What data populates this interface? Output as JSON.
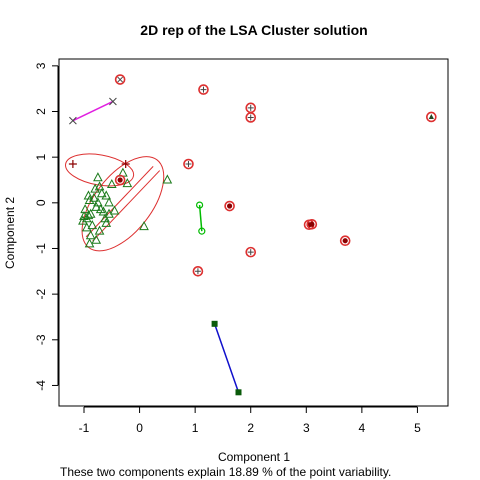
{
  "chart_data": {
    "type": "scatter",
    "title": "2D rep of the LSA Cluster solution",
    "xlabel": "Component 1",
    "ylabel": "Component 2",
    "subtitle": "These two components explain 18.89 % of the point variability.",
    "xlim": [
      -1.45,
      5.55
    ],
    "ylim": [
      -4.45,
      3.15
    ],
    "x_ticks": [
      -1,
      0,
      1,
      2,
      3,
      4,
      5
    ],
    "y_ticks": [
      -4,
      -3,
      -2,
      -1,
      0,
      1,
      2,
      3
    ],
    "grid": false,
    "colors": {
      "cluster_ellipse": "#dd3030",
      "large_cluster": "#1a7a1a",
      "plus_cluster": "#8b0000",
      "x_cluster_line": "#e020e0",
      "circle_cluster_line": "#00bb00",
      "square_cluster_line": "#1010cc",
      "square_marker": "#0a5a0a",
      "outline_marker": "#444444"
    },
    "ellipses": [
      {
        "cx": -0.72,
        "cy": 0.72,
        "rx": 0.62,
        "ry": 0.33,
        "angle_deg": -10
      },
      {
        "cx": -0.3,
        "cy": -0.02,
        "rx": 1.0,
        "ry": 0.62,
        "angle_deg": 52
      }
    ],
    "segments": [
      {
        "from": [
          -1.2,
          1.8
        ],
        "to": [
          -0.48,
          2.22
        ],
        "color": "#e020e0"
      },
      {
        "from": [
          1.08,
          -0.05
        ],
        "to": [
          1.12,
          -0.62
        ],
        "color": "#00bb00"
      },
      {
        "from": [
          1.35,
          -2.65
        ],
        "to": [
          1.78,
          -4.15
        ],
        "color": "#1010cc"
      }
    ],
    "series": [
      {
        "marker": "triangle",
        "points": [
          [
            -1.0,
            -0.3
          ],
          [
            -0.95,
            -0.35
          ],
          [
            -0.92,
            -0.28
          ],
          [
            -0.88,
            -0.25
          ],
          [
            -1.02,
            -0.4
          ],
          [
            -0.9,
            0.05
          ],
          [
            -0.82,
            0.1
          ],
          [
            -0.75,
            0.0
          ],
          [
            -0.7,
            -0.15
          ],
          [
            -0.65,
            -0.2
          ],
          [
            -0.85,
            -0.5
          ],
          [
            -0.95,
            -0.55
          ],
          [
            -0.88,
            -0.72
          ],
          [
            -0.78,
            -0.82
          ],
          [
            -0.72,
            -0.62
          ],
          [
            -0.6,
            -0.45
          ],
          [
            -0.55,
            -0.25
          ],
          [
            -0.45,
            -0.18
          ],
          [
            -0.8,
            0.3
          ],
          [
            -0.72,
            0.35
          ],
          [
            -0.68,
            0.2
          ],
          [
            -0.6,
            0.15
          ],
          [
            -0.55,
            0.0
          ],
          [
            -0.78,
            -0.1
          ],
          [
            -0.98,
            -0.15
          ],
          [
            -0.92,
            0.15
          ],
          [
            -0.5,
            0.4
          ],
          [
            -0.75,
            0.55
          ],
          [
            -0.3,
            0.65
          ],
          [
            -0.22,
            0.42
          ],
          [
            0.5,
            0.5
          ],
          [
            0.08,
            -0.52
          ],
          [
            -0.9,
            -0.9
          ],
          [
            -0.62,
            -0.35
          ]
        ]
      },
      {
        "marker": "circle-dot",
        "points": [
          [
            -0.35,
            0.5
          ],
          [
            1.62,
            -0.07
          ],
          [
            3.7,
            -0.83
          ],
          [
            3.05,
            -0.48
          ],
          [
            3.1,
            -0.47
          ]
        ]
      },
      {
        "marker": "circle-plus",
        "points": [
          [
            2.0,
            2.08
          ],
          [
            2.0,
            1.87
          ],
          [
            0.88,
            0.85
          ],
          [
            2.0,
            -1.08
          ],
          [
            1.05,
            -1.5
          ],
          [
            1.15,
            2.48
          ]
        ]
      },
      {
        "marker": "circle-x",
        "points": [
          [
            -0.35,
            2.7
          ]
        ]
      },
      {
        "marker": "circle-triangle",
        "points": [
          [
            5.25,
            1.88
          ]
        ]
      },
      {
        "marker": "plus",
        "points": [
          [
            -1.2,
            0.85
          ],
          [
            -0.25,
            0.85
          ]
        ]
      },
      {
        "marker": "x",
        "points": [
          [
            -1.2,
            1.8
          ],
          [
            -0.48,
            2.22
          ]
        ]
      },
      {
        "marker": "small-circle",
        "points": [
          [
            1.08,
            -0.05
          ],
          [
            1.12,
            -0.62
          ]
        ]
      },
      {
        "marker": "square",
        "points": [
          [
            1.35,
            -2.65
          ],
          [
            1.78,
            -4.15
          ]
        ]
      }
    ]
  }
}
